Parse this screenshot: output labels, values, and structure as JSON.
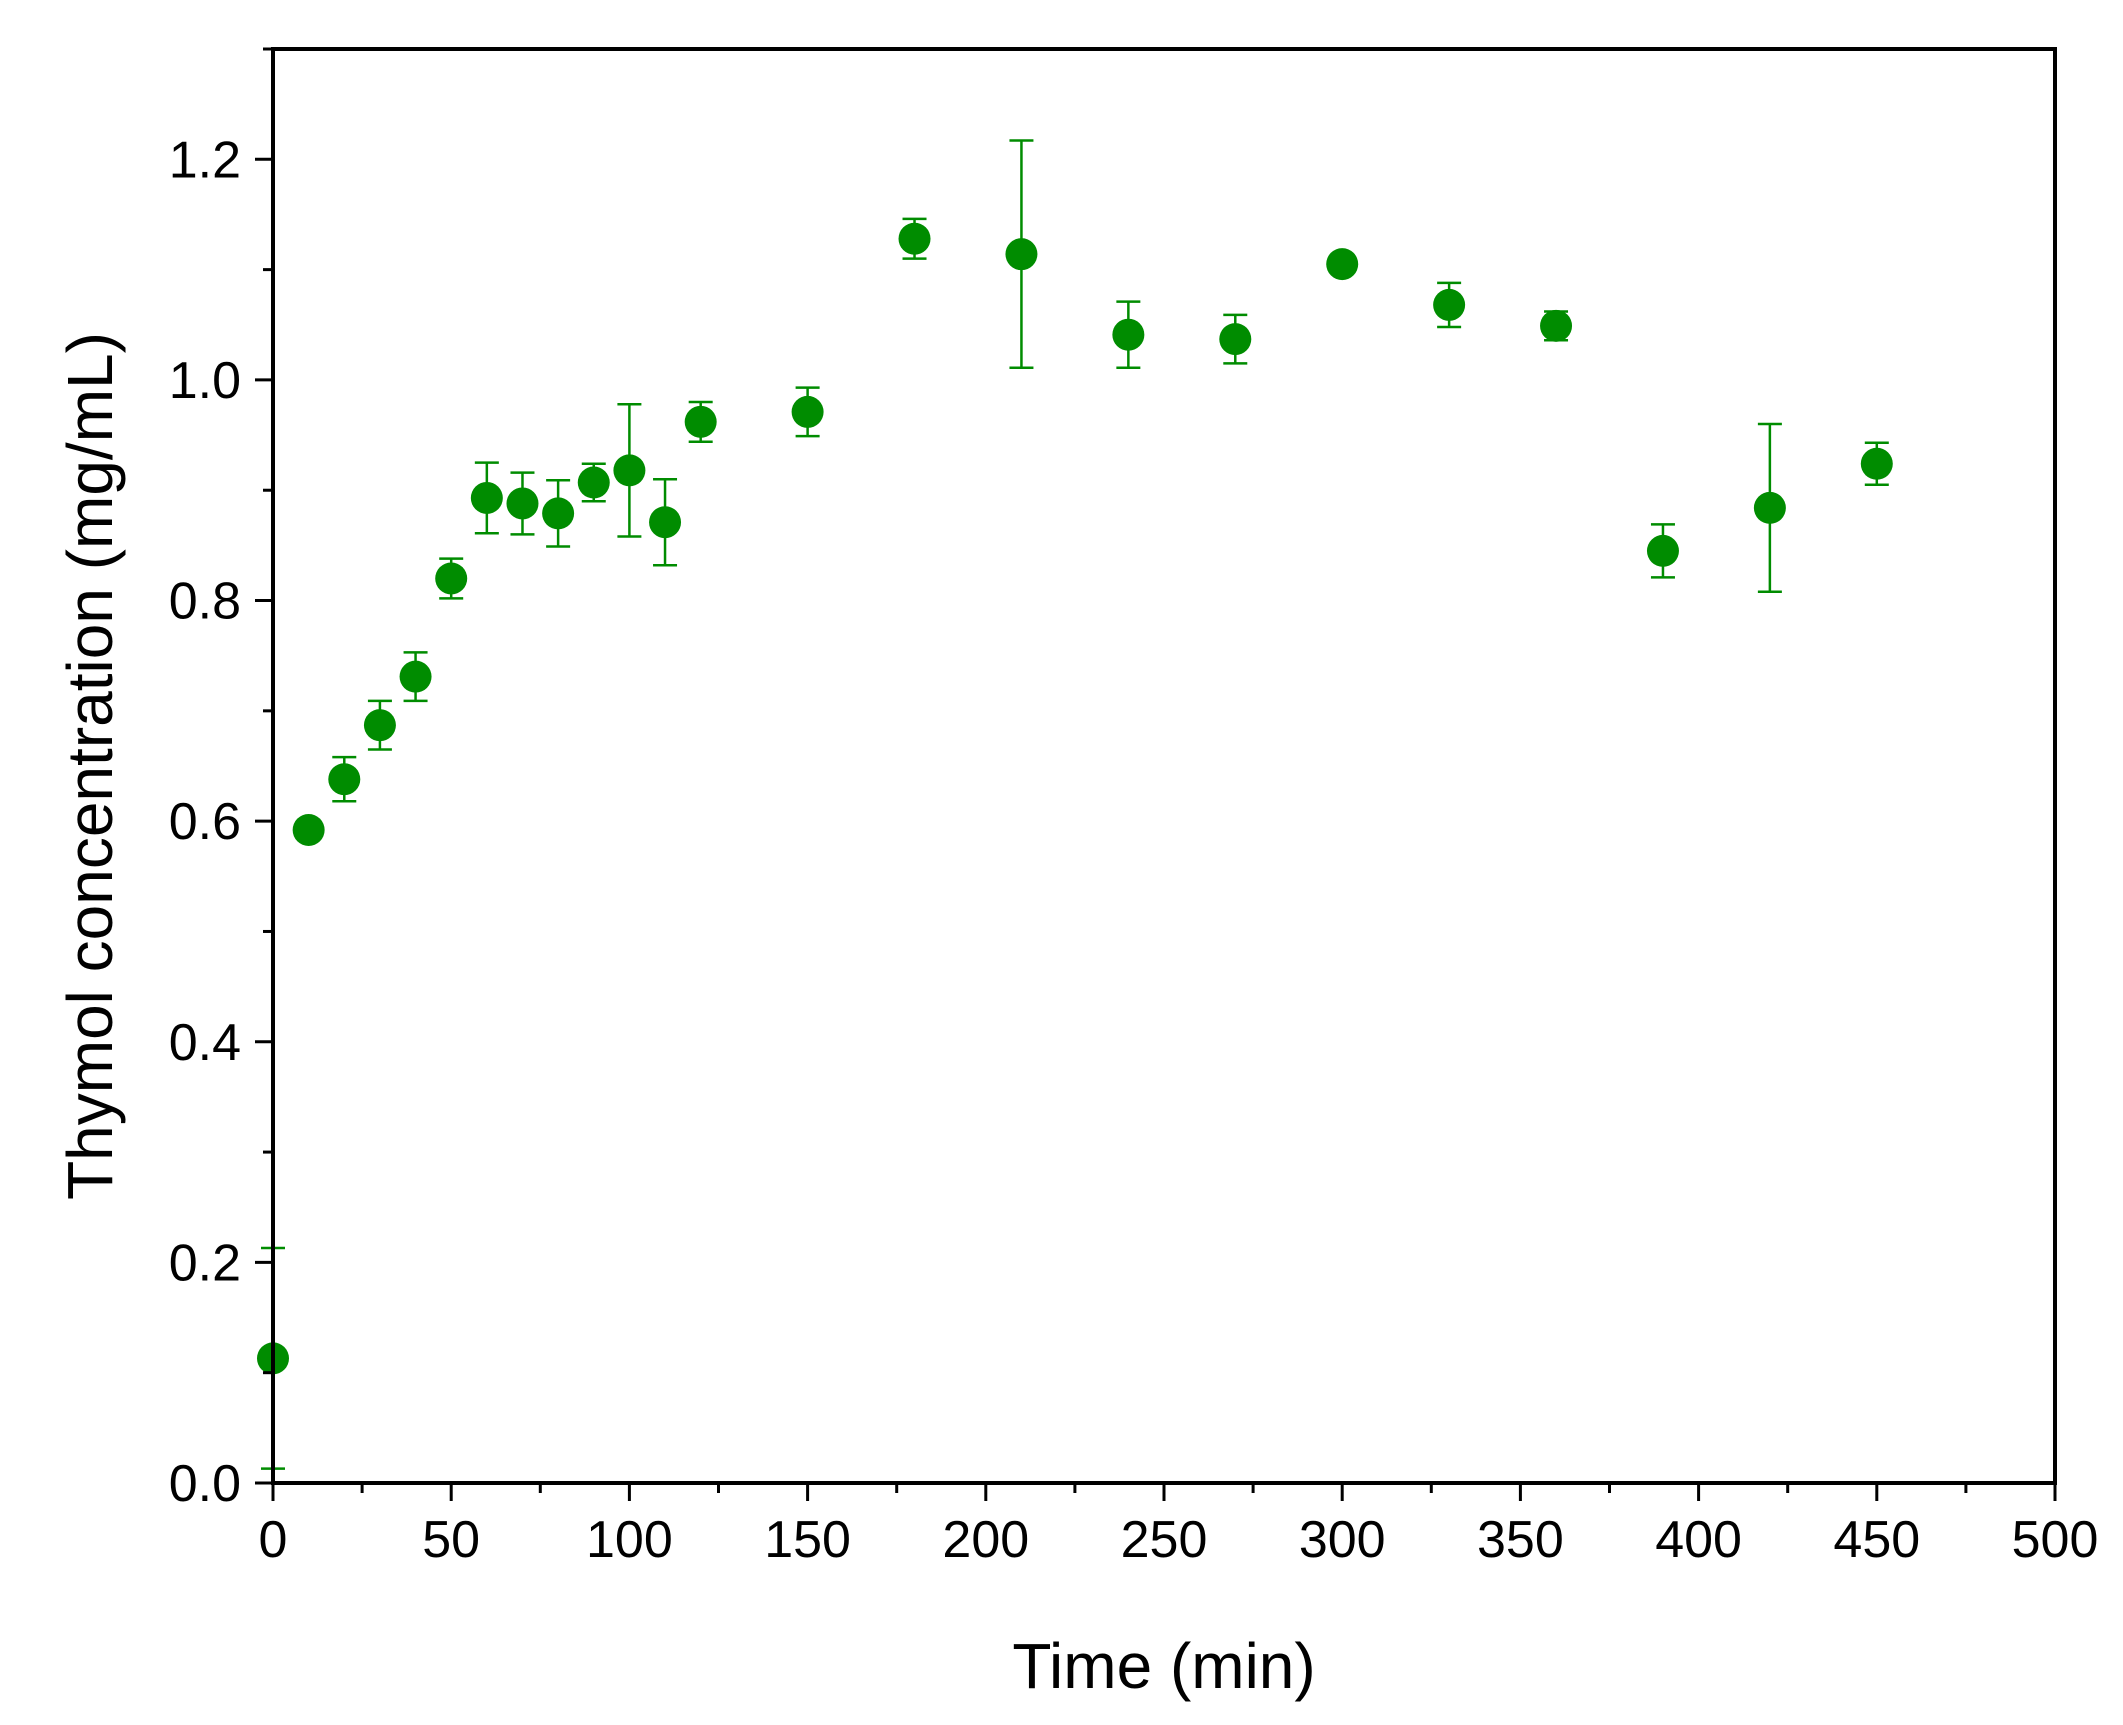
{
  "chart_data": {
    "type": "scatter",
    "title": "",
    "xlabel": "Time (min)",
    "ylabel": "Thymol concentration (mg/mL)",
    "xlim": [
      0,
      500
    ],
    "ylim": [
      0,
      1.3
    ],
    "x_ticks": [
      0,
      50,
      100,
      150,
      200,
      250,
      300,
      350,
      400,
      450,
      500
    ],
    "x_tick_labels": [
      "0",
      "50",
      "100",
      "150",
      "200",
      "250",
      "300",
      "350",
      "400",
      "450",
      "500"
    ],
    "y_ticks": [
      0.0,
      0.2,
      0.4,
      0.6,
      0.8,
      1.0,
      1.2
    ],
    "y_tick_labels": [
      "0.0",
      "0.2",
      "0.4",
      "0.6",
      "0.8",
      "1.0",
      "1.2"
    ],
    "grid": false,
    "legend": "none",
    "marker_color": "#008C00",
    "points": [
      {
        "x": 0,
        "y": 0.113,
        "err": 0.1
      },
      {
        "x": 10,
        "y": 0.592,
        "err": 0.008
      },
      {
        "x": 20,
        "y": 0.638,
        "err": 0.02
      },
      {
        "x": 30,
        "y": 0.687,
        "err": 0.022
      },
      {
        "x": 40,
        "y": 0.731,
        "err": 0.022
      },
      {
        "x": 50,
        "y": 0.82,
        "err": 0.018
      },
      {
        "x": 60,
        "y": 0.893,
        "err": 0.032
      },
      {
        "x": 70,
        "y": 0.888,
        "err": 0.028
      },
      {
        "x": 80,
        "y": 0.879,
        "err": 0.03
      },
      {
        "x": 90,
        "y": 0.907,
        "err": 0.017
      },
      {
        "x": 100,
        "y": 0.918,
        "err": 0.06
      },
      {
        "x": 110,
        "y": 0.871,
        "err": 0.039
      },
      {
        "x": 120,
        "y": 0.962,
        "err": 0.018
      },
      {
        "x": 150,
        "y": 0.971,
        "err": 0.022
      },
      {
        "x": 180,
        "y": 1.128,
        "err": 0.018
      },
      {
        "x": 210,
        "y": 1.114,
        "err": 0.103
      },
      {
        "x": 240,
        "y": 1.041,
        "err": 0.03
      },
      {
        "x": 270,
        "y": 1.037,
        "err": 0.022
      },
      {
        "x": 300,
        "y": 1.105,
        "err": 0.008
      },
      {
        "x": 330,
        "y": 1.068,
        "err": 0.02
      },
      {
        "x": 360,
        "y": 1.049,
        "err": 0.013
      },
      {
        "x": 390,
        "y": 0.845,
        "err": 0.024
      },
      {
        "x": 420,
        "y": 0.884,
        "err": 0.076
      },
      {
        "x": 450,
        "y": 0.924,
        "err": 0.019
      }
    ]
  }
}
